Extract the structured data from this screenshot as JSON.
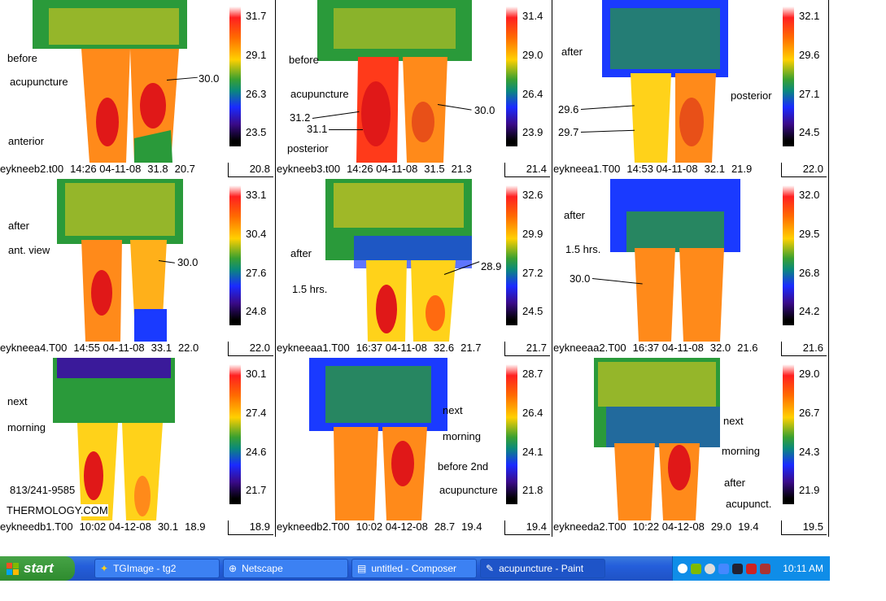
{
  "panels": [
    {
      "notes": [
        "before",
        "acupuncture",
        "anterior"
      ],
      "callouts": [
        "30.0"
      ],
      "scale": [
        "31.7",
        "29.1",
        "26.3",
        "23.5"
      ],
      "scale_min": "20.8",
      "caption": {
        "file": "eykneeb2.t00",
        "time": "14:26 04-11-08",
        "max": "31.8",
        "min": "20.7"
      }
    },
    {
      "notes": [
        "before",
        "acupuncture",
        "posterior"
      ],
      "callouts": [
        "31.2",
        "31.1",
        "30.0"
      ],
      "scale": [
        "31.4",
        "29.0",
        "26.4",
        "23.9"
      ],
      "scale_min": "21.4",
      "caption": {
        "file": "eykneeb3.t00",
        "time": "14:26 04-11-08",
        "max": "31.5",
        "min": "21.3"
      }
    },
    {
      "notes": [
        "after",
        "posterior"
      ],
      "callouts": [
        "29.6",
        "29.7"
      ],
      "scale": [
        "32.1",
        "29.6",
        "27.1",
        "24.5"
      ],
      "scale_min": "22.0",
      "caption": {
        "file": "eykneea1.T00",
        "time": "14:53 04-11-08",
        "max": "32.1",
        "min": "21.9"
      }
    },
    {
      "notes": [
        "after",
        "ant. view"
      ],
      "callouts": [
        "30.0"
      ],
      "scale": [
        "33.1",
        "30.4",
        "27.6",
        "24.8"
      ],
      "scale_min": "22.0",
      "caption": {
        "file": "eykneea4.T00",
        "time": "14:55 04-11-08",
        "max": "33.1",
        "min": "22.0"
      }
    },
    {
      "notes": [
        "after",
        "1.5 hrs."
      ],
      "callouts": [
        "28.9"
      ],
      "scale": [
        "32.6",
        "29.9",
        "27.2",
        "24.5"
      ],
      "scale_min": "21.7",
      "caption": {
        "file": "eykneeaa1.T00",
        "time": "16:37 04-11-08",
        "max": "32.6",
        "min": "21.7"
      }
    },
    {
      "notes": [
        "after",
        "1.5 hrs."
      ],
      "callouts": [
        "30.0"
      ],
      "scale": [
        "32.0",
        "29.5",
        "26.8",
        "24.2"
      ],
      "scale_min": "21.6",
      "caption": {
        "file": "eykneeaa2.T00",
        "time": "16:37 04-11-08",
        "max": "32.0",
        "min": "21.6"
      }
    },
    {
      "notes": [
        "next",
        "morning",
        "813/241-9585",
        "THERMOLOGY.COM"
      ],
      "callouts": [],
      "scale": [
        "30.1",
        "27.4",
        "24.6",
        "21.7"
      ],
      "scale_min": "18.9",
      "caption": {
        "file": "eykneedb1.T00",
        "time": "10:02 04-12-08",
        "max": "30.1",
        "min": "18.9"
      }
    },
    {
      "notes": [
        "next",
        "morning",
        "before 2nd",
        "acupuncture"
      ],
      "callouts": [],
      "scale": [
        "28.7",
        "26.4",
        "24.1",
        "21.8"
      ],
      "scale_min": "19.4",
      "caption": {
        "file": "eykneedb2.T00",
        "time": "10:02 04-12-08",
        "max": "28.7",
        "min": "19.4"
      }
    },
    {
      "notes": [
        "next",
        "morning",
        "after",
        "acupunct."
      ],
      "callouts": [],
      "scale": [
        "29.0",
        "26.7",
        "24.3",
        "21.9"
      ],
      "scale_min": "19.5",
      "caption": {
        "file": "eykneeda2.T00",
        "time": "10:22 04-12-08",
        "max": "29.0",
        "min": "19.4"
      }
    }
  ],
  "taskbar": {
    "start_label": "start",
    "buttons": [
      "TGImage - tg2",
      "Netscape",
      "untitled - Composer",
      "acupuncture - Paint"
    ],
    "clock": "10:11 AM"
  },
  "colors": {
    "hot": "#e01818",
    "warm": "#ff8a1a",
    "mid": "#ffd21a",
    "cool": "#2a9a3a",
    "cold": "#1a3aff"
  }
}
